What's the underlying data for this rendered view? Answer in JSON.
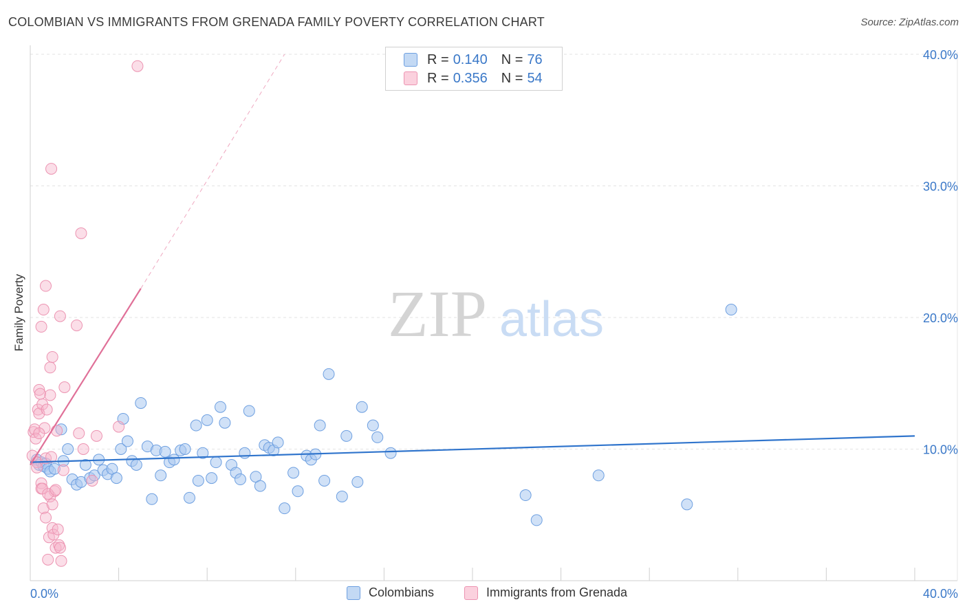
{
  "header": {
    "title": "COLOMBIAN VS IMMIGRANTS FROM GRENADA FAMILY POVERTY CORRELATION CHART",
    "source": "Source: ZipAtlas.com"
  },
  "watermark": {
    "zip": "ZIP",
    "atlas": "atlas"
  },
  "legend_top": {
    "rows": [
      {
        "r_label": "R =",
        "r_value": "0.140",
        "n_label": "N =",
        "n_value": "76",
        "color": "#a9c8f0"
      },
      {
        "r_label": "R =",
        "r_value": "0.356",
        "n_label": "N =",
        "n_value": "54",
        "color": "#f7b6cb"
      }
    ]
  },
  "legend_bottom": {
    "items": [
      {
        "label": "Colombians",
        "color": "#a9c8f0"
      },
      {
        "label": "Immigrants from Grenada",
        "color": "#f7b6cb"
      }
    ]
  },
  "chart_data": {
    "type": "scatter",
    "title": "COLOMBIAN VS IMMIGRANTS FROM GRENADA FAMILY POVERTY CORRELATION CHART",
    "xlabel": "",
    "ylabel": "Family Poverty",
    "xlim": [
      0,
      40
    ],
    "ylim": [
      0,
      40
    ],
    "x_tick_labels": [
      "0.0%",
      "40.0%"
    ],
    "y_ticks": [
      10,
      20,
      30,
      40
    ],
    "y_tick_labels": [
      "10.0%",
      "20.0%",
      "30.0%",
      "40.0%"
    ],
    "colors": {
      "Colombians": "#3a78c8",
      "Immigrants from Grenada": "#e07098"
    },
    "series": [
      {
        "name": "Colombians",
        "r": 0.14,
        "n": 76,
        "trend": {
          "x": [
            0,
            40
          ],
          "y": [
            9.0,
            11.0
          ]
        },
        "points": [
          [
            0.3,
            9.2
          ],
          [
            0.4,
            8.8
          ],
          [
            0.5,
            9.0
          ],
          [
            0.6,
            8.7
          ],
          [
            0.7,
            8.9
          ],
          [
            0.8,
            8.5
          ],
          [
            0.9,
            8.3
          ],
          [
            1.1,
            8.5
          ],
          [
            1.4,
            11.5
          ],
          [
            1.5,
            9.1
          ],
          [
            1.7,
            10.0
          ],
          [
            1.9,
            7.7
          ],
          [
            2.1,
            7.3
          ],
          [
            2.3,
            7.5
          ],
          [
            2.5,
            8.8
          ],
          [
            2.7,
            7.8
          ],
          [
            2.9,
            8.0
          ],
          [
            3.1,
            9.2
          ],
          [
            3.3,
            8.4
          ],
          [
            3.5,
            8.1
          ],
          [
            3.7,
            8.5
          ],
          [
            3.9,
            7.8
          ],
          [
            4.1,
            10.0
          ],
          [
            4.2,
            12.3
          ],
          [
            4.4,
            10.6
          ],
          [
            4.6,
            9.1
          ],
          [
            4.8,
            8.8
          ],
          [
            5.0,
            13.5
          ],
          [
            5.3,
            10.2
          ],
          [
            5.5,
            6.2
          ],
          [
            5.7,
            9.9
          ],
          [
            5.9,
            8.0
          ],
          [
            6.1,
            9.8
          ],
          [
            6.3,
            9.0
          ],
          [
            6.5,
            9.2
          ],
          [
            6.8,
            9.9
          ],
          [
            7.0,
            10.0
          ],
          [
            7.2,
            6.3
          ],
          [
            7.5,
            11.8
          ],
          [
            7.6,
            7.6
          ],
          [
            7.8,
            9.7
          ],
          [
            8.0,
            12.2
          ],
          [
            8.2,
            7.8
          ],
          [
            8.4,
            9.0
          ],
          [
            8.6,
            13.2
          ],
          [
            8.8,
            12.0
          ],
          [
            9.1,
            8.8
          ],
          [
            9.3,
            8.2
          ],
          [
            9.5,
            7.7
          ],
          [
            9.7,
            9.7
          ],
          [
            9.9,
            12.9
          ],
          [
            10.2,
            7.9
          ],
          [
            10.4,
            7.2
          ],
          [
            10.6,
            10.3
          ],
          [
            10.8,
            10.1
          ],
          [
            11.0,
            9.9
          ],
          [
            11.2,
            10.5
          ],
          [
            11.5,
            5.5
          ],
          [
            11.9,
            8.2
          ],
          [
            12.1,
            6.8
          ],
          [
            12.5,
            9.5
          ],
          [
            12.7,
            9.2
          ],
          [
            12.9,
            9.6
          ],
          [
            13.1,
            11.8
          ],
          [
            13.3,
            7.6
          ],
          [
            13.5,
            15.7
          ],
          [
            14.1,
            6.4
          ],
          [
            14.3,
            11.0
          ],
          [
            14.8,
            7.5
          ],
          [
            15.0,
            13.2
          ],
          [
            15.5,
            11.8
          ],
          [
            15.7,
            10.9
          ],
          [
            16.3,
            9.7
          ],
          [
            22.4,
            6.5
          ],
          [
            22.9,
            4.6
          ],
          [
            25.7,
            8.0
          ],
          [
            29.7,
            5.8
          ],
          [
            31.7,
            20.6
          ]
        ]
      },
      {
        "name": "Immigrants from Grenada",
        "r": 0.356,
        "n": 54,
        "trend": {
          "x": [
            0,
            5.0
          ],
          "y": [
            8.8,
            22.2
          ]
        },
        "trend_extension": {
          "x": [
            5.0,
            11.5
          ],
          "y": [
            22.2,
            40.0
          ]
        },
        "points": [
          [
            0.1,
            9.5
          ],
          [
            0.15,
            11.3
          ],
          [
            0.2,
            11.5
          ],
          [
            0.25,
            10.8
          ],
          [
            0.3,
            9.0
          ],
          [
            0.3,
            8.6
          ],
          [
            0.35,
            13.0
          ],
          [
            0.4,
            12.7
          ],
          [
            0.4,
            14.5
          ],
          [
            0.45,
            14.2
          ],
          [
            0.5,
            7.4
          ],
          [
            0.5,
            7.0
          ],
          [
            0.55,
            13.4
          ],
          [
            0.6,
            5.5
          ],
          [
            0.65,
            11.6
          ],
          [
            0.7,
            4.8
          ],
          [
            0.7,
            9.3
          ],
          [
            0.75,
            13.0
          ],
          [
            0.8,
            1.6
          ],
          [
            0.85,
            3.3
          ],
          [
            0.9,
            14.1
          ],
          [
            0.9,
            6.4
          ],
          [
            0.95,
            9.4
          ],
          [
            1.0,
            5.8
          ],
          [
            1.0,
            4.0
          ],
          [
            1.05,
            3.5
          ],
          [
            1.1,
            6.8
          ],
          [
            1.15,
            2.5
          ],
          [
            1.2,
            11.4
          ],
          [
            1.25,
            3.9
          ],
          [
            1.3,
            2.7
          ],
          [
            1.35,
            2.5
          ],
          [
            1.4,
            1.5
          ],
          [
            1.5,
            8.4
          ],
          [
            0.5,
            19.3
          ],
          [
            0.6,
            20.6
          ],
          [
            0.7,
            22.4
          ],
          [
            0.9,
            16.2
          ],
          [
            1.0,
            17.0
          ],
          [
            0.95,
            31.3
          ],
          [
            1.35,
            20.1
          ],
          [
            1.55,
            14.7
          ],
          [
            2.1,
            19.4
          ],
          [
            2.2,
            11.2
          ],
          [
            2.3,
            26.4
          ],
          [
            2.4,
            10.0
          ],
          [
            2.8,
            7.6
          ],
          [
            3.0,
            11.0
          ],
          [
            4.0,
            11.7
          ],
          [
            4.85,
            39.1
          ],
          [
            0.55,
            7.0
          ],
          [
            0.8,
            6.6
          ],
          [
            1.15,
            6.9
          ],
          [
            0.4,
            11.2
          ]
        ]
      }
    ]
  }
}
